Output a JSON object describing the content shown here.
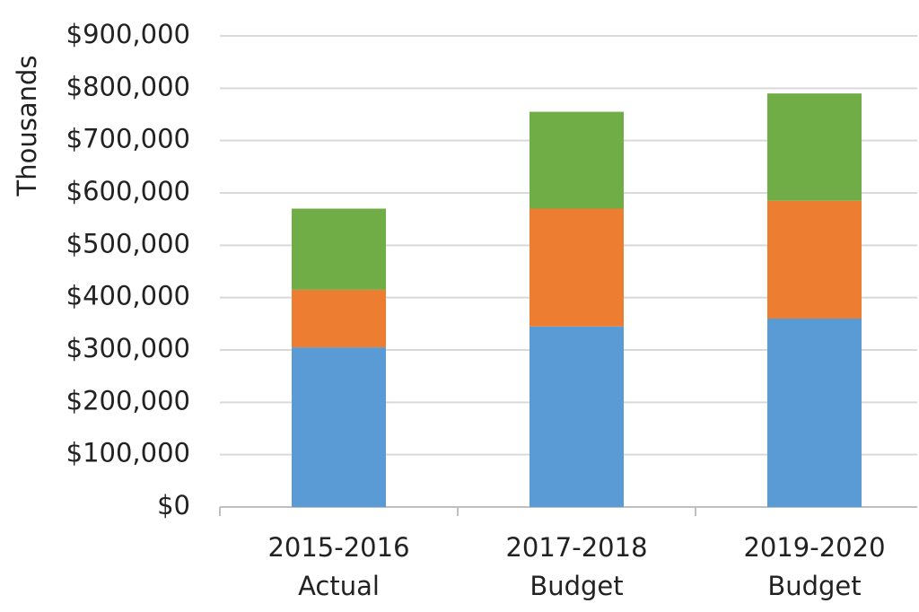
{
  "chart_data": {
    "type": "stacked_bar",
    "y_label": "Thousands",
    "categories": [
      [
        "2015-2016",
        "Actual"
      ],
      [
        "2017-2018",
        "Budget"
      ],
      [
        "2019-2020",
        "Budget"
      ]
    ],
    "series": [
      {
        "color": "#5b9bd5",
        "values": [
          305000,
          345000,
          360000
        ]
      },
      {
        "color": "#ed7d31",
        "values": [
          110000,
          225000,
          225000
        ]
      },
      {
        "color": "#70ad47",
        "values": [
          155000,
          185000,
          205000
        ]
      }
    ],
    "ylim": [
      0,
      900000
    ],
    "yticks": [
      {
        "value": 0,
        "label": "$0"
      },
      {
        "value": 100000,
        "label": "$100,000"
      },
      {
        "value": 200000,
        "label": "$200,000"
      },
      {
        "value": 300000,
        "label": "$300,000"
      },
      {
        "value": 400000,
        "label": "$400,000"
      },
      {
        "value": 500000,
        "label": "$500,000"
      },
      {
        "value": 600000,
        "label": "$600,000"
      },
      {
        "value": 700000,
        "label": "$700,000"
      },
      {
        "value": 800000,
        "label": "$800,000"
      },
      {
        "value": 900000,
        "label": "$900,000"
      }
    ],
    "grid": true
  }
}
